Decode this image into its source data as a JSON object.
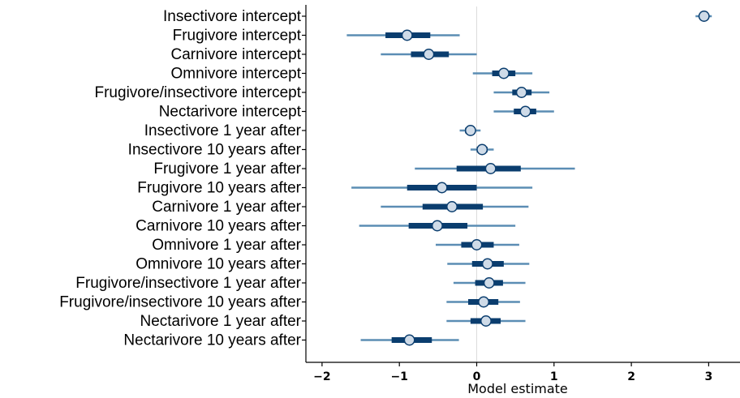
{
  "chart_data": {
    "type": "forest",
    "xlabel": "Model estimate",
    "xlim": [
      -2.3,
      3.4
    ],
    "xticks": [
      -2,
      -1,
      0,
      1,
      2,
      3
    ],
    "xtick_labels": [
      "−2",
      "−1",
      "0",
      "1",
      "2",
      "3"
    ],
    "reference_line_x": 0,
    "grid": false,
    "colors": {
      "outer_interval": "#5b8db4",
      "inner_interval": "#0a3d6e",
      "point_fill": "#cfdbe8",
      "point_stroke": "#0a3d6e",
      "reference_line": "#dcdcdc"
    },
    "rows": [
      {
        "label": "Insectivore intercept",
        "estimate": 2.94,
        "inner": [
          2.89,
          2.99
        ],
        "outer": [
          2.83,
          3.04
        ]
      },
      {
        "label": "Frugivore intercept",
        "estimate": -0.9,
        "inner": [
          -1.18,
          -0.6
        ],
        "outer": [
          -1.68,
          -0.22
        ]
      },
      {
        "label": "Carnivore intercept",
        "estimate": -0.62,
        "inner": [
          -0.85,
          -0.36
        ],
        "outer": [
          -1.24,
          0.0
        ]
      },
      {
        "label": "Omnivore intercept",
        "estimate": 0.35,
        "inner": [
          0.2,
          0.5
        ],
        "outer": [
          -0.05,
          0.72
        ]
      },
      {
        "label": "Frugivore/insectivore intercept",
        "estimate": 0.58,
        "inner": [
          0.46,
          0.71
        ],
        "outer": [
          0.22,
          0.94
        ]
      },
      {
        "label": "Nectarivore intercept",
        "estimate": 0.63,
        "inner": [
          0.48,
          0.77
        ],
        "outer": [
          0.22,
          1.0
        ]
      },
      {
        "label": "Insectivore 1 year after",
        "estimate": -0.08,
        "inner": [
          -0.15,
          -0.02
        ],
        "outer": [
          -0.22,
          0.05
        ]
      },
      {
        "label": "Insectivore 10 years after",
        "estimate": 0.07,
        "inner": [
          0.0,
          0.14
        ],
        "outer": [
          -0.08,
          0.22
        ]
      },
      {
        "label": "Frugivore 1 year after",
        "estimate": 0.18,
        "inner": [
          -0.26,
          0.57
        ],
        "outer": [
          -0.8,
          1.27
        ]
      },
      {
        "label": "Frugivore 10 years after",
        "estimate": -0.45,
        "inner": [
          -0.9,
          0.0
        ],
        "outer": [
          -1.62,
          0.72
        ]
      },
      {
        "label": "Carnivore 1 year after",
        "estimate": -0.32,
        "inner": [
          -0.7,
          0.08
        ],
        "outer": [
          -1.24,
          0.67
        ]
      },
      {
        "label": "Carnivore 10 years after",
        "estimate": -0.51,
        "inner": [
          -0.88,
          -0.12
        ],
        "outer": [
          -1.52,
          0.5
        ]
      },
      {
        "label": "Omnivore 1 year after",
        "estimate": 0.0,
        "inner": [
          -0.2,
          0.22
        ],
        "outer": [
          -0.53,
          0.55
        ]
      },
      {
        "label": "Omnivore 10 years after",
        "estimate": 0.14,
        "inner": [
          -0.06,
          0.35
        ],
        "outer": [
          -0.38,
          0.68
        ]
      },
      {
        "label": "Frugivore/insectivore 1 year after",
        "estimate": 0.16,
        "inner": [
          -0.02,
          0.34
        ],
        "outer": [
          -0.3,
          0.63
        ]
      },
      {
        "label": "Frugivore/insectivore 10 years after",
        "estimate": 0.09,
        "inner": [
          -0.11,
          0.28
        ],
        "outer": [
          -0.39,
          0.56
        ]
      },
      {
        "label": "Nectarivore 1 year after",
        "estimate": 0.12,
        "inner": [
          -0.08,
          0.31
        ],
        "outer": [
          -0.39,
          0.63
        ]
      },
      {
        "label": "Nectarivore 10 years after",
        "estimate": -0.87,
        "inner": [
          -1.1,
          -0.58
        ],
        "outer": [
          -1.5,
          -0.23
        ]
      }
    ]
  }
}
